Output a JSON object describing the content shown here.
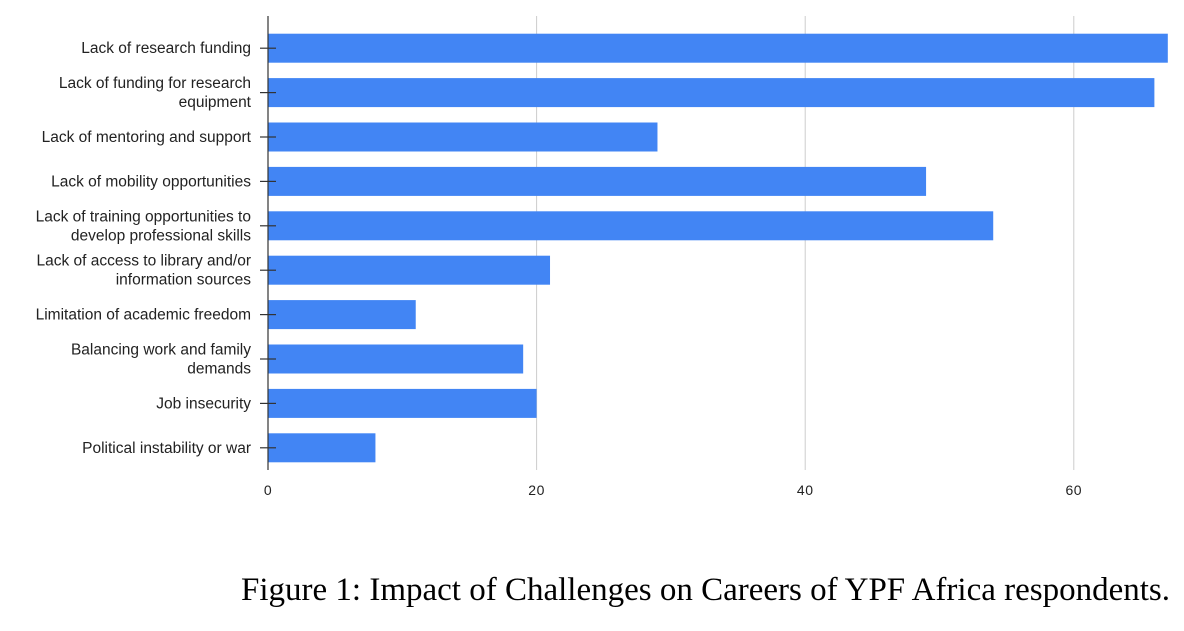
{
  "chart_data": {
    "type": "bar",
    "orientation": "horizontal",
    "categories": [
      [
        "Lack of research funding"
      ],
      [
        "Lack of funding for research",
        "equipment"
      ],
      [
        "Lack of mentoring and support"
      ],
      [
        "Lack of mobility opportunities"
      ],
      [
        "Lack of training opportunities to",
        "develop professional skills"
      ],
      [
        "Lack of access to library and/or",
        "information sources"
      ],
      [
        "Limitation of academic freedom"
      ],
      [
        "Balancing work and family",
        "demands"
      ],
      [
        "Job insecurity"
      ],
      [
        "Political instability or war"
      ]
    ],
    "values": [
      67,
      66,
      29,
      49,
      54,
      21,
      11,
      19,
      20,
      8
    ],
    "xlim": [
      0,
      67
    ],
    "xticks": [
      0,
      20,
      40,
      60
    ],
    "grid": true,
    "bar_color": "#4285f4",
    "grid_color": "#cccccc",
    "axis_color": "#333333"
  },
  "caption": "Figure 1: Impact of Challenges on Careers of YPF Africa respondents."
}
